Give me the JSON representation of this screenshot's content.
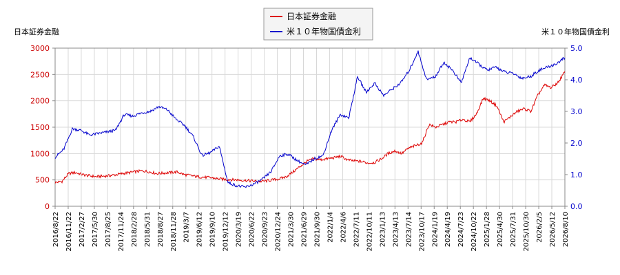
{
  "chart_data": {
    "type": "line",
    "left_axis_title": "日本証券金融",
    "right_axis_title": "米１０年物国債金利",
    "x_ticks": [
      "2016/8/22",
      "2016/11/22",
      "2017/2/27",
      "2017/5/30",
      "2017/8/25",
      "2017/11/24",
      "2018/2/28",
      "2018/5/31",
      "2018/8/27",
      "2018/11/28",
      "2019/3/7",
      "2019/6/12",
      "2019/9/10",
      "2019/12/12",
      "2020/3/19",
      "2020/6/22",
      "2020/9/23",
      "2020/12/24",
      "2021/3/30",
      "2021/6/29",
      "2021/9/30",
      "2022/1/4",
      "2022/4/6",
      "2022/7/11",
      "2022/10/11",
      "2023/1/13",
      "2023/4/13",
      "2023/7/14",
      "2023/10/17",
      "2024/1/19",
      "2024/4/19",
      "2024/7/23",
      "2024/10/22",
      "2025/1/28",
      "2025/4/30",
      "2025/7/31",
      "2025/10/30",
      "2026/2/5",
      "2026/5/12",
      "2026/8/10"
    ],
    "y_left": {
      "min": 0,
      "max": 3000,
      "ticks": [
        "0",
        "500",
        "1000",
        "1500",
        "2000",
        "2500",
        "3000"
      ]
    },
    "y_right": {
      "min": 0,
      "max": 5,
      "ticks": [
        "0.0",
        "1.0",
        "2.0",
        "3.0",
        "4.0",
        "5.0"
      ]
    },
    "grid": true,
    "legend_position": "top-center",
    "series": [
      {
        "name": "日本証券金融",
        "axis": "left",
        "color": "#dd0000",
        "values": [
          450,
          470,
          620,
          640,
          600,
          580,
          560,
          570,
          580,
          600,
          620,
          640,
          660,
          670,
          650,
          620,
          630,
          640,
          650,
          600,
          580,
          560,
          550,
          540,
          520,
          510,
          505,
          500,
          490,
          480,
          470,
          480,
          500,
          520,
          560,
          650,
          750,
          850,
          900,
          880,
          900,
          920,
          950,
          880,
          860,
          850,
          820,
          830,
          900,
          1000,
          1050,
          1000,
          1100,
          1150,
          1200,
          1550,
          1500,
          1550,
          1600,
          1600,
          1650,
          1600,
          1750,
          2050,
          2000,
          1900,
          1600,
          1700,
          1800,
          1850,
          1800,
          2100,
          2300,
          2250,
          2350,
          2550
        ]
      },
      {
        "name": "米１０年物国債金利",
        "axis": "right",
        "color": "#0000cc",
        "values": [
          1.55,
          1.8,
          2.45,
          2.4,
          2.25,
          2.3,
          2.35,
          2.4,
          2.9,
          2.85,
          2.95,
          3.0,
          3.15,
          3.05,
          2.75,
          2.55,
          2.2,
          1.6,
          1.7,
          1.9,
          0.75,
          0.65,
          0.6,
          0.7,
          0.85,
          1.1,
          1.6,
          1.65,
          1.45,
          1.3,
          1.5,
          1.6,
          2.4,
          2.9,
          2.8,
          4.1,
          3.6,
          3.9,
          3.5,
          3.7,
          3.9,
          4.3,
          4.9,
          4.0,
          4.1,
          4.55,
          4.3,
          3.9,
          4.7,
          4.5,
          4.3,
          4.4,
          4.25,
          4.2,
          4.05,
          4.1,
          4.3,
          4.4,
          4.5,
          4.7
        ]
      }
    ]
  }
}
